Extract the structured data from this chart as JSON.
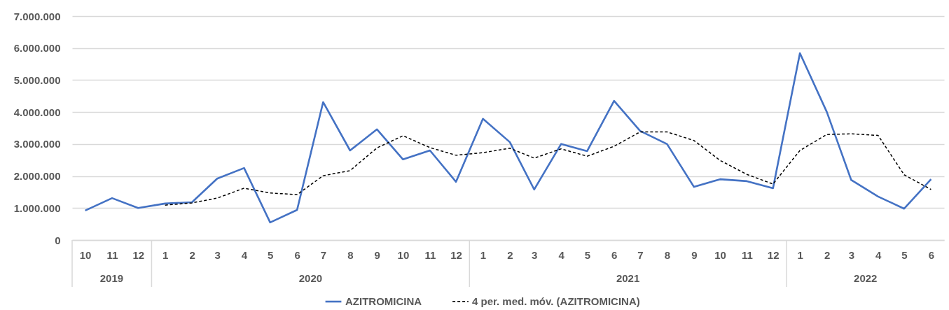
{
  "chart_data": {
    "type": "line",
    "x": [
      "2019-10",
      "2019-11",
      "2019-12",
      "2020-01",
      "2020-02",
      "2020-03",
      "2020-04",
      "2020-05",
      "2020-06",
      "2020-07",
      "2020-08",
      "2020-09",
      "2020-10",
      "2020-11",
      "2020-12",
      "2021-01",
      "2021-02",
      "2021-03",
      "2021-04",
      "2021-05",
      "2021-06",
      "2021-07",
      "2021-08",
      "2021-09",
      "2021-10",
      "2021-11",
      "2021-12",
      "2022-01",
      "2022-02",
      "2022-03",
      "2022-04",
      "2022-05",
      "2022-06"
    ],
    "xlim": [
      "2019-09-16",
      "2022-06-16"
    ],
    "xticks": [
      {
        "value": "2019-10",
        "label": "10"
      },
      {
        "value": "2019-11",
        "label": "11"
      },
      {
        "value": "2019-12",
        "label": "12"
      },
      {
        "value": "2020-01",
        "label": "1"
      },
      {
        "value": "2020-02",
        "label": "2"
      },
      {
        "value": "2020-03",
        "label": "3"
      },
      {
        "value": "2020-04",
        "label": "4"
      },
      {
        "value": "2020-05",
        "label": "5"
      },
      {
        "value": "2020-06",
        "label": "6"
      },
      {
        "value": "2020-07",
        "label": "7"
      },
      {
        "value": "2020-08",
        "label": "8"
      },
      {
        "value": "2020-09",
        "label": "9"
      },
      {
        "value": "2020-10",
        "label": "10"
      },
      {
        "value": "2020-11",
        "label": "11"
      },
      {
        "value": "2020-12",
        "label": "12"
      },
      {
        "value": "2021-01",
        "label": "1"
      },
      {
        "value": "2021-02",
        "label": "2"
      },
      {
        "value": "2021-03",
        "label": "3"
      },
      {
        "value": "2021-04",
        "label": "4"
      },
      {
        "value": "2021-05",
        "label": "5"
      },
      {
        "value": "2021-06",
        "label": "6"
      },
      {
        "value": "2021-07",
        "label": "7"
      },
      {
        "value": "2021-08",
        "label": "8"
      },
      {
        "value": "2021-09",
        "label": "9"
      },
      {
        "value": "2021-10",
        "label": "10"
      },
      {
        "value": "2021-11",
        "label": "11"
      },
      {
        "value": "2021-12",
        "label": "12"
      },
      {
        "value": "2022-01",
        "label": "1"
      },
      {
        "value": "2022-02",
        "label": "2"
      },
      {
        "value": "2022-03",
        "label": "3"
      },
      {
        "value": "2022-04",
        "label": "4"
      },
      {
        "value": "2022-05",
        "label": "5"
      },
      {
        "value": "2022-06",
        "label": "6"
      }
    ],
    "annotations": [
      "2019",
      "2020",
      "2021",
      "2022"
    ],
    "ylim": [
      0,
      7000000
    ],
    "yticks": [
      {
        "value": 0,
        "label": "0"
      },
      {
        "value": 1000000,
        "label": "1.000.000"
      },
      {
        "value": 2000000,
        "label": "2.000.000"
      },
      {
        "value": 3000000,
        "label": "3.000.000"
      },
      {
        "value": 4000000,
        "label": "4.000.000"
      },
      {
        "value": 5000000,
        "label": "5.000.000"
      },
      {
        "value": 6000000,
        "label": "6.000.000"
      },
      {
        "value": 7000000,
        "label": "7.000.000"
      }
    ],
    "grid": "y",
    "legend": "bottom",
    "marker": "none",
    "series": [
      {
        "name": "AZITROMICINA",
        "color": "#4472c4",
        "line_style": "solid",
        "values": [
          920000,
          1310000,
          1000000,
          1140000,
          1180000,
          1920000,
          2250000,
          550000,
          940000,
          4310000,
          2800000,
          3460000,
          2520000,
          2800000,
          1820000,
          3790000,
          3060000,
          1580000,
          3000000,
          2780000,
          4350000,
          3410000,
          3000000,
          1660000,
          1900000,
          1840000,
          1620000,
          5840000,
          4000000,
          1880000,
          1360000,
          980000,
          1900000
        ]
      },
      {
        "name": "4 per. med. móv. (AZITROMICINA)",
        "color": "#000000",
        "line_style": "dashed",
        "values": [
          null,
          null,
          null,
          1090000,
          1160000,
          1310000,
          1620000,
          1470000,
          1420000,
          2010000,
          2170000,
          2880000,
          3260000,
          2890000,
          2650000,
          2730000,
          2870000,
          2560000,
          2850000,
          2620000,
          2930000,
          3380000,
          3380000,
          3110000,
          2490000,
          2050000,
          1750000,
          2800000,
          3300000,
          3320000,
          3270000,
          2040000,
          1580000
        ]
      }
    ]
  }
}
